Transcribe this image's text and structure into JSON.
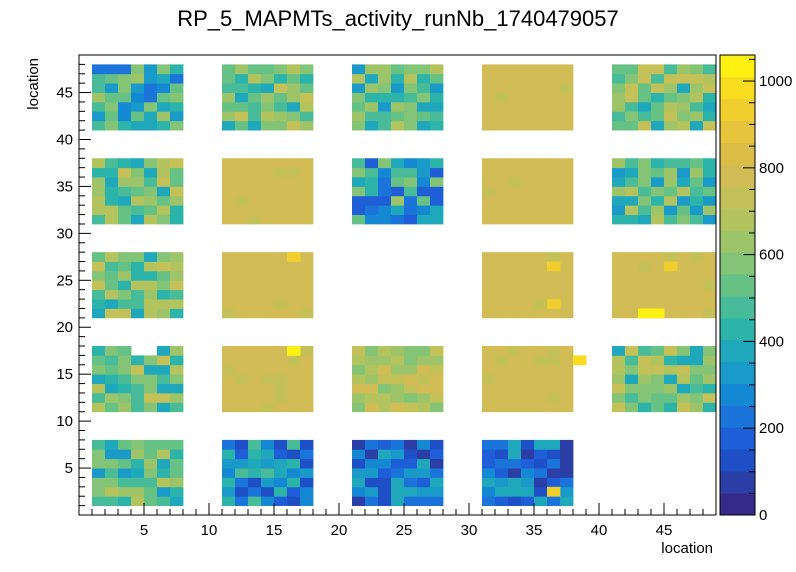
{
  "chart_data": {
    "type": "heatmap",
    "title": "RP_5_MAPMTs_activity_runNb_1740479057",
    "xlabel": "location",
    "ylabel": "location",
    "xlim": [
      0,
      49
    ],
    "ylim": [
      0,
      49
    ],
    "zlim": [
      0,
      1060
    ],
    "x_ticks": [
      5,
      10,
      15,
      20,
      25,
      30,
      35,
      40,
      45
    ],
    "y_ticks": [
      5,
      10,
      15,
      20,
      25,
      30,
      35,
      40,
      45
    ],
    "z_ticks": [
      0,
      200,
      400,
      600,
      800,
      1000
    ],
    "palette": [
      "#352a87",
      "#2a3ea6",
      "#1f4fc6",
      "#1e5fd8",
      "#1a74d9",
      "#1488d2",
      "#1a9ac8",
      "#1fa8bb",
      "#2db4aa",
      "#48bc98",
      "#66c185",
      "#83c476",
      "#9ec46a",
      "#b3c35e",
      "#c4c158",
      "#d2bc55",
      "#dcbd48",
      "#e6c43c",
      "#f0ce2d",
      "#f8dc1f",
      "#fdf013"
    ],
    "blocks_x": [
      [
        1,
        8
      ],
      [
        11,
        18
      ],
      [
        21,
        28
      ],
      [
        31,
        38
      ],
      [
        41,
        49
      ]
    ],
    "blocks_y": [
      [
        1,
        8
      ],
      [
        11,
        18
      ],
      [
        21,
        28
      ],
      [
        31,
        38
      ],
      [
        41,
        48
      ]
    ],
    "block_levels": [
      [
        "low-mid",
        "mid",
        "mid-low",
        "high",
        "mid"
      ],
      [
        "mid",
        "high",
        "low-mid",
        "high",
        "mid-low"
      ],
      [
        "mid",
        "high",
        "empty",
        "high",
        "high"
      ],
      [
        "mid",
        "high",
        "mid-high",
        "high",
        "mid"
      ],
      [
        "mid-low",
        "low",
        "very-low",
        "very-low",
        "empty"
      ]
    ],
    "hot_bins": [
      [
        16,
        27,
        "#f0ce2d"
      ],
      [
        36,
        26,
        "#f0ce2d"
      ],
      [
        36,
        22,
        "#f0ce2d"
      ],
      [
        43,
        21,
        "#fdf013"
      ],
      [
        44,
        21,
        "#fdf013"
      ],
      [
        45,
        26,
        "#f0ce2d"
      ],
      [
        16,
        17,
        "#fdf013"
      ],
      [
        38,
        16,
        "#f8dc1f"
      ],
      [
        36,
        2,
        "#f0ce2d"
      ]
    ],
    "missing_bins": [
      [
        4,
        17
      ],
      [
        5,
        17
      ]
    ],
    "grid": false
  }
}
